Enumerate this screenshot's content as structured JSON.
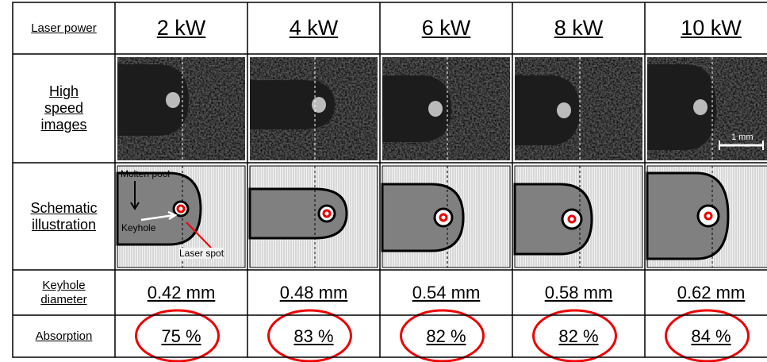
{
  "header": {
    "label": "Laser power",
    "columns": [
      "2 kW",
      "4 kW",
      "6 kW",
      "8 kW",
      "10 kW"
    ]
  },
  "rows": {
    "images": {
      "label": "High speed images",
      "scale_bar": "1 mm"
    },
    "schematic": {
      "label": "Schematic illustration",
      "annotations": {
        "molten_pool": "Molten pool",
        "keyhole": "Keyhole",
        "laser_spot": "Laser spot"
      }
    },
    "keyhole_diameter": {
      "label": "Keyhole diameter",
      "values": [
        "0.42 mm",
        "0.48 mm",
        "0.54 mm",
        "0.58 mm",
        "0.62 mm"
      ]
    },
    "absorption": {
      "label": "Absorption",
      "values": [
        "75 %",
        "83 %",
        "82 %",
        "82 %",
        "84 %"
      ]
    }
  }
}
